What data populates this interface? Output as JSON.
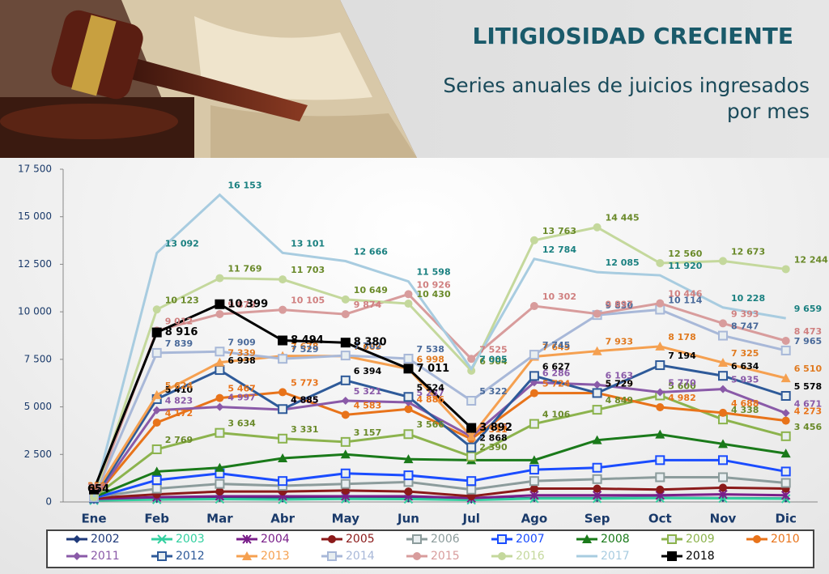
{
  "chart_data": {
    "type": "line",
    "title": "LITIGIOSIDAD CRECIENTE",
    "subtitle_lines": [
      "Series anuales de juicios ingresados",
      "por mes"
    ],
    "categories": [
      "Ene",
      "Feb",
      "Mar",
      "Abr",
      "May",
      "Jun",
      "Jul",
      "Ago",
      "Sep",
      "Oct",
      "Nov",
      "Dic"
    ],
    "ylim": [
      0,
      17500
    ],
    "yticks": [
      0,
      {
        "value": 2500,
        "label": "2 500"
      },
      {
        "value": 5000,
        "label": "5 000"
      },
      {
        "value": 7500,
        "label": "7 500"
      },
      {
        "value": 10000,
        "label": "10 000"
      },
      {
        "value": 12500,
        "label": "12 500"
      },
      {
        "value": 15000,
        "label": "15 000"
      },
      {
        "value": 17500,
        "label": "17 500"
      }
    ],
    "series": [
      {
        "name": "2002",
        "color": "#1f3a7a",
        "marker": "diamond",
        "values": [
          100,
          150,
          200,
          180,
          200,
          180,
          120,
          200,
          200,
          220,
          200,
          180
        ]
      },
      {
        "name": "2003",
        "color": "#33d0a0",
        "marker": "x",
        "values": [
          80,
          120,
          150,
          130,
          160,
          150,
          100,
          180,
          180,
          200,
          190,
          170
        ]
      },
      {
        "name": "2004",
        "color": "#7a1f8a",
        "marker": "star",
        "values": [
          150,
          250,
          300,
          300,
          300,
          300,
          200,
          350,
          350,
          350,
          400,
          350
        ]
      },
      {
        "name": "2005",
        "color": "#8b1a1a",
        "marker": "circle",
        "values": [
          200,
          400,
          550,
          550,
          600,
          550,
          300,
          700,
          700,
          650,
          750,
          700
        ]
      },
      {
        "name": "2006",
        "color": "#8c9c9c",
        "marker": "square",
        "values": [
          250,
          700,
          950,
          850,
          950,
          1050,
          650,
          1100,
          1200,
          1300,
          1300,
          1000
        ]
      },
      {
        "name": "2007",
        "color": "#1a4cff",
        "marker": "square",
        "values": [
          200,
          1150,
          1500,
          1100,
          1500,
          1400,
          1100,
          1700,
          1800,
          2200,
          2200,
          1600
        ]
      },
      {
        "name": "2008",
        "color": "#1a7a1a",
        "marker": "triangle",
        "values": [
          250,
          1600,
          1800,
          2300,
          2500,
          2250,
          2200,
          2200,
          3250,
          3550,
          3050,
          2550
        ]
      },
      {
        "name": "2009",
        "color": "#8cb34d",
        "marker": "square",
        "label_color": "#6a8a2a",
        "values": [
          250,
          2769,
          3634,
          3331,
          3157,
          3566,
          2390,
          4106,
          4849,
          5600,
          4338,
          3456
        ],
        "value_labels": [
          null,
          "2 769",
          "3 634",
          "3 331",
          "3 157",
          "3 566",
          "2 390",
          "4 106",
          "4 849",
          "5 600",
          "4 338",
          "3 456"
        ]
      },
      {
        "name": "2010",
        "color": "#e8731a",
        "marker": "circle",
        "values": [
          200,
          4172,
          5467,
          5773,
          4583,
          4886,
          3311,
          5724,
          5729,
          4982,
          4688,
          4273
        ],
        "value_labels": [
          null,
          "4 172",
          "5 467",
          "5 773",
          "4 583",
          "4 886",
          "3 311",
          "5 724",
          "5 729",
          "4 982",
          "4 688",
          "4 273"
        ]
      },
      {
        "name": "2011",
        "color": "#8a5aa8",
        "marker": "diamond",
        "values": [
          150,
          4823,
          4997,
          4855,
          5321,
          5237,
          3440,
          6286,
          6163,
          5770,
          5935,
          4671
        ],
        "value_labels": [
          null,
          "4 823",
          "4 997",
          "4 855",
          "5 321",
          "5 237",
          "3 440",
          "6 286",
          "6 163",
          "5 770",
          "5 935",
          "4 671"
        ]
      },
      {
        "name": "2012",
        "color": "#2e5a99",
        "marker": "square",
        "label_color": "#000000",
        "values": [
          200,
          5410,
          6938,
          4885,
          6394,
          5524,
          2868,
          6627,
          5729,
          7194,
          6634,
          5578
        ],
        "value_labels": [
          null,
          "5 410",
          "6 938",
          "4 885",
          "6 394",
          "5 524",
          "2 868",
          "6 627",
          "5 729",
          "7 194",
          "6 634",
          "5 578"
        ]
      },
      {
        "name": "2013",
        "color": "#f5a050",
        "marker": "triangle",
        "label_color": "#e07a20",
        "values": [
          358,
          5624,
          7339,
          7678,
          7669,
          6998,
          3446,
          7645,
          7933,
          8178,
          7325,
          6510
        ],
        "value_labels": [
          "358",
          "5 624",
          "7 339",
          "7 678",
          "7 669",
          "6 998",
          "3 446",
          "7 645",
          "7 933",
          "8 178",
          "7 325",
          "6 510"
        ]
      },
      {
        "name": "2014",
        "color": "#a8b8d8",
        "marker": "square",
        "label_color": "#4a6a9a",
        "values": [
          250,
          7839,
          7909,
          7529,
          7702,
          7538,
          5322,
          7745,
          9830,
          10114,
          8747,
          7965
        ],
        "value_labels": [
          null,
          "7 839",
          "7 909",
          "7 529",
          "7 702",
          "7 538",
          "5 322",
          "7 745",
          "9 830",
          "10 114",
          "8 747",
          "7 965"
        ]
      },
      {
        "name": "2015",
        "color": "#d89c9c",
        "marker": "circle",
        "label_color": "#d08080",
        "values": [
          296,
          9012,
          9879,
          10105,
          9874,
          10926,
          7525,
          10302,
          9897,
          10446,
          9393,
          8473
        ],
        "value_labels": [
          "296",
          "9 012",
          "9 879",
          "10 105",
          "9 874",
          "10 926",
          "7 525",
          "10 302",
          "9 897",
          "10 446",
          "9 393",
          "8 473"
        ]
      },
      {
        "name": "2016",
        "color": "#c4d89c",
        "marker": "circle",
        "label_color": "#6a8a2a",
        "values": [
          250,
          10123,
          11769,
          11703,
          10649,
          10430,
          6904,
          13763,
          14445,
          12560,
          12673,
          12244
        ],
        "value_labels": [
          null,
          "10 123",
          "11 769",
          "11 703",
          "10 649",
          "10 430",
          "6 904",
          "13 763",
          "14 445",
          "12 560",
          "12 673",
          "12 244"
        ]
      },
      {
        "name": "2017",
        "color": "#a8cce0",
        "marker": "none",
        "label_color": "#1a8080",
        "values": [
          250,
          13092,
          16153,
          13101,
          12666,
          11598,
          7005,
          12784,
          12085,
          11920,
          10228,
          9659
        ],
        "value_labels": [
          null,
          "13 092",
          "16 153",
          "13 101",
          "12 666",
          "11 598",
          "7 005",
          "12 784",
          "12 085",
          "11 920",
          "10 228",
          "9 659"
        ]
      },
      {
        "name": "2018",
        "color": "#000000",
        "marker": "square",
        "label_color": "#000000",
        "values": [
          654,
          8916,
          10399,
          8494,
          8380,
          7011,
          3892,
          null,
          null,
          null,
          null,
          null
        ],
        "value_labels": [
          "654",
          "8 916",
          "10 399",
          "8 494",
          "8 380",
          "7 011",
          "3 892",
          null,
          null,
          null,
          null,
          null
        ]
      }
    ]
  }
}
